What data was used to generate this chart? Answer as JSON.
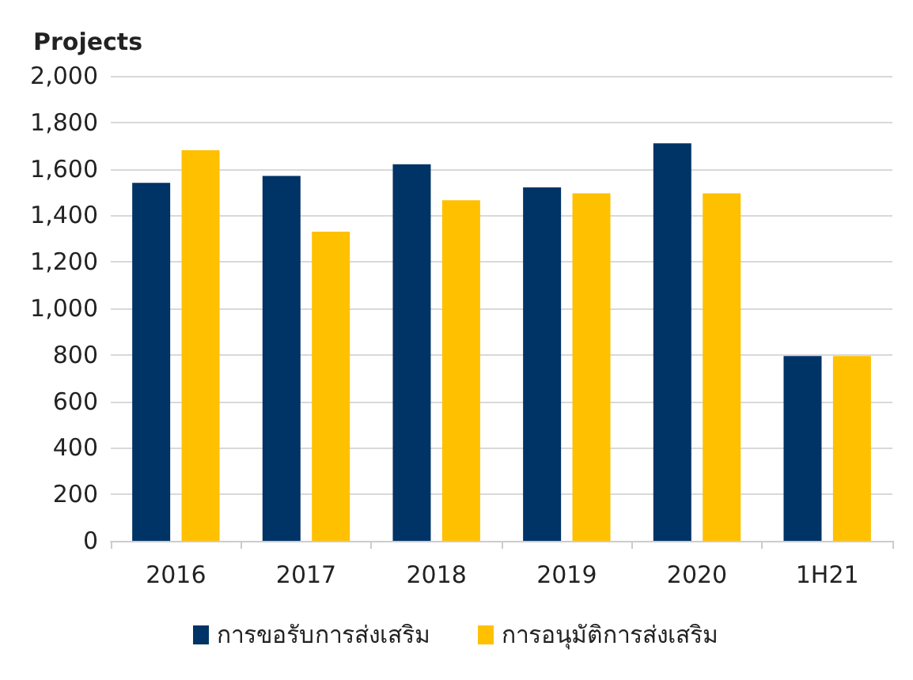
{
  "chart_data": {
    "type": "bar",
    "ylabel": "Projects",
    "categories": [
      "2016",
      "2017",
      "2018",
      "2019",
      "2020",
      "1H21"
    ],
    "series": [
      {
        "name": "การขอรับการส่งเสริม",
        "color": "#003366",
        "values": [
          1540,
          1570,
          1620,
          1520,
          1710,
          795
        ]
      },
      {
        "name": "การอนุมัติการส่งเสริม",
        "color": "#ffc000",
        "values": [
          1680,
          1330,
          1465,
          1495,
          1495,
          795
        ]
      }
    ],
    "ylim": [
      0,
      2000
    ],
    "yticks": [
      0,
      200,
      400,
      600,
      800,
      {
        "value": 1000,
        "label": "1,000"
      },
      {
        "value": 1200,
        "label": "1,200"
      },
      {
        "value": 1400,
        "label": "1,400"
      },
      {
        "value": 1600,
        "label": "1,600"
      },
      {
        "value": 1800,
        "label": "1,800"
      },
      {
        "value": 2000,
        "label": "2,000"
      }
    ],
    "grid": "y",
    "legend": "bottom"
  }
}
